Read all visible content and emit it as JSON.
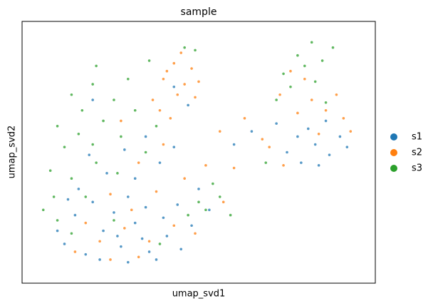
{
  "chart_data": {
    "type": "scatter",
    "title": "sample",
    "x_label": "umap_svd1",
    "y_label": "umap_svd2",
    "xlim": [
      0,
      10
    ],
    "ylim": [
      0,
      10
    ],
    "legend": "right",
    "series": [
      {
        "name": "s1",
        "color": "#1f77b4",
        "x": [
          1.2,
          1.8,
          2.3,
          2.8,
          3.2,
          3.6,
          4.1,
          4.5,
          1.5,
          2.0,
          2.6,
          3.0,
          3.5,
          4.0,
          4.4,
          4.8,
          1.0,
          2.2,
          3.0,
          3.8,
          1.6,
          2.4,
          3.2,
          3.9,
          2.9,
          1.9,
          3.5,
          4.3,
          5.0,
          5.3,
          2.7,
          3.4,
          1.3,
          7.5,
          7.9,
          8.3,
          8.7,
          9.0,
          8.1,
          8.6,
          9.2,
          7.8,
          8.4,
          7.2,
          6.5,
          6.0,
          4.3,
          4.7,
          2.0
        ],
        "y": [
          1.5,
          1.1,
          2.0,
          1.4,
          2.3,
          1.2,
          1.8,
          1.3,
          2.6,
          3.1,
          2.7,
          3.3,
          2.9,
          2.5,
          3.0,
          2.2,
          2.0,
          0.9,
          0.8,
          0.9,
          3.6,
          4.2,
          4.0,
          4.6,
          5.1,
          4.9,
          5.6,
          5.2,
          3.6,
          2.8,
          1.8,
          1.7,
          3.2,
          5.0,
          4.6,
          5.3,
          4.9,
          5.6,
          5.9,
          6.2,
          5.2,
          5.6,
          4.5,
          6.1,
          5.8,
          5.3,
          7.5,
          6.8,
          7.0
        ]
      },
      {
        "name": "s2",
        "color": "#ff7f0e",
        "x": [
          3.7,
          4.0,
          4.3,
          4.6,
          4.9,
          4.5,
          4.1,
          4.8,
          3.9,
          4.4,
          5.0,
          4.2,
          7.3,
          7.8,
          8.2,
          8.6,
          9.1,
          8.9,
          8.0,
          7.6,
          8.4,
          7.0,
          7.4,
          9.3,
          1.5,
          2.2,
          2.9,
          3.6,
          4.3,
          4.9,
          3.1,
          3.8,
          4.6,
          2.5,
          3.3,
          4.0,
          2.8,
          1.8,
          5.2,
          5.7,
          6.0,
          2.5,
          3.3,
          6.3,
          6.8,
          5.6
        ],
        "y": [
          7.0,
          7.8,
          8.4,
          7.6,
          7.1,
          8.8,
          8.1,
          8.2,
          6.6,
          7.2,
          7.7,
          6.3,
          7.2,
          6.5,
          7.0,
          6.6,
          6.3,
          7.2,
          7.8,
          8.1,
          5.7,
          5.2,
          4.5,
          5.8,
          1.2,
          1.6,
          2.1,
          1.6,
          2.2,
          1.9,
          2.8,
          3.5,
          4.0,
          3.4,
          4.6,
          5.3,
          6.2,
          2.3,
          4.5,
          3.1,
          4.4,
          0.9,
          1.0,
          6.3,
          5.5,
          5.8
        ]
      },
      {
        "name": "s3",
        "color": "#2ca02c",
        "x": [
          1.0,
          1.4,
          2.0,
          2.1,
          1.7,
          2.6,
          3.0,
          1.2,
          0.8,
          1.6,
          2.3,
          2.8,
          3.2,
          0.9,
          1.4,
          2.1,
          2.7,
          1.0,
          0.6,
          1.8,
          3.5,
          3.8,
          2.0,
          5.2,
          5.6,
          5.9,
          5.4,
          5.0,
          4.7,
          1.4,
          2.6,
          3.9,
          7.4,
          7.8,
          8.2,
          8.5,
          8.0,
          7.6,
          8.8,
          7.2,
          8.3,
          6.9,
          8.6,
          3.6,
          4.9,
          4.6
        ],
        "y": [
          6.0,
          7.2,
          7.6,
          8.3,
          6.6,
          7.0,
          7.8,
          5.2,
          4.3,
          5.7,
          6.2,
          5.6,
          6.6,
          3.3,
          4.0,
          4.6,
          4.2,
          2.4,
          2.8,
          3.3,
          5.0,
          6.0,
          5.3,
          2.8,
          3.3,
          2.6,
          3.8,
          3.1,
          2.6,
          1.9,
          2.4,
          1.5,
          8.0,
          8.7,
          9.2,
          8.5,
          8.3,
          7.5,
          9.0,
          7.0,
          7.7,
          4.6,
          6.9,
          8.5,
          8.9,
          9.0
        ]
      }
    ]
  }
}
